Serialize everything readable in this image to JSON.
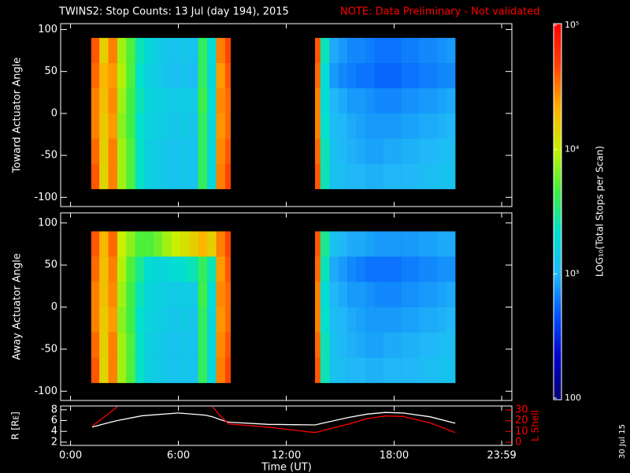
{
  "title": "TWINS2: Stop Counts: 13 Jul (day 194), 2015",
  "note": "NOTE: Data Preliminary - Not validated",
  "x_label": "Time (UT)",
  "date_stamp": "30 Jul 15",
  "colorbar": {
    "label": "LOG₁₀(Total Stops per Scan)",
    "log": true,
    "clim": [
      100,
      100000
    ],
    "ticks": [
      {
        "value": 100000,
        "label": "10⁵"
      },
      {
        "value": 10000,
        "label": "10⁴"
      },
      {
        "value": 1000,
        "label": "10³"
      },
      100
    ],
    "colormap": [
      "#000070",
      "#0000c8",
      "#0050ff",
      "#20b8f8",
      "#00e0d0",
      "#40f040",
      "#c8f000",
      "#ffb000",
      "#ff4000",
      "#ff0000"
    ]
  },
  "chart_data": [
    {
      "type": "heatmap",
      "ylabel": "Toward Actuator Angle",
      "x_edges": [
        1.15,
        1.6,
        2.1,
        2.6,
        3.1,
        3.6,
        4.1,
        4.6,
        5.1,
        5.6,
        6.1,
        6.6,
        7.1,
        7.6,
        8.1,
        8.6,
        8.9,
        13.6,
        13.9,
        14.4,
        14.9,
        15.4,
        15.9,
        16.4,
        16.9,
        17.4,
        17.9,
        18.4,
        18.9,
        19.4,
        19.9,
        20.4,
        20.9,
        21.4
      ],
      "y_edges": [
        90,
        60,
        30,
        0,
        -30,
        -60,
        -90
      ],
      "z": [
        [
          40000,
          15000,
          30000,
          8000,
          5000,
          2500,
          1800,
          1500,
          1300,
          1200,
          1300,
          1200,
          4000,
          2000,
          30000,
          45000,
          null,
          40000,
          2500,
          900,
          800,
          700,
          700,
          650,
          600,
          600,
          600,
          650,
          650,
          700,
          700,
          750,
          800
        ],
        [
          35000,
          20000,
          25000,
          9000,
          5000,
          2200,
          1600,
          1400,
          1200,
          1100,
          1200,
          1100,
          4000,
          1800,
          25000,
          40000,
          null,
          35000,
          2000,
          800,
          700,
          650,
          600,
          600,
          550,
          550,
          550,
          600,
          600,
          650,
          650,
          700,
          700
        ],
        [
          30000,
          18000,
          28000,
          8000,
          4500,
          2500,
          1800,
          1600,
          1500,
          1400,
          1500,
          1400,
          4500,
          2000,
          28000,
          35000,
          null,
          30000,
          2000,
          1000,
          900,
          800,
          800,
          750,
          700,
          700,
          700,
          750,
          750,
          800,
          800,
          850,
          900
        ],
        [
          30000,
          16000,
          25000,
          7000,
          4500,
          2200,
          1700,
          1500,
          1400,
          1300,
          1400,
          1300,
          4000,
          1800,
          26000,
          35000,
          null,
          30000,
          2200,
          1100,
          1000,
          900,
          850,
          800,
          800,
          800,
          800,
          850,
          850,
          900,
          900,
          950,
          1000
        ],
        [
          35000,
          15000,
          30000,
          8000,
          5000,
          2300,
          1600,
          1400,
          1300,
          1200,
          1300,
          1200,
          4000,
          1800,
          28000,
          40000,
          null,
          35000,
          2500,
          1200,
          1000,
          950,
          900,
          850,
          850,
          900,
          900,
          950,
          950,
          1000,
          1000,
          1100,
          1100
        ],
        [
          40000,
          14000,
          30000,
          8000,
          5000,
          2300,
          1600,
          1400,
          1300,
          1200,
          1300,
          1200,
          4000,
          1800,
          30000,
          45000,
          null,
          40000,
          2500,
          1200,
          1100,
          1000,
          1000,
          950,
          950,
          1000,
          1000,
          1000,
          1000,
          1100,
          1100,
          1200,
          1200
        ]
      ],
      "ylim": [
        -111,
        107
      ],
      "yticks": [
        -100,
        -50,
        0,
        50,
        100
      ]
    },
    {
      "type": "heatmap",
      "ylabel": "Away Actuator Angle",
      "x_edges": [
        1.15,
        1.6,
        2.1,
        2.6,
        3.1,
        3.6,
        4.1,
        4.6,
        5.1,
        5.6,
        6.1,
        6.6,
        7.1,
        7.6,
        8.1,
        8.6,
        8.9,
        13.6,
        13.9,
        14.4,
        14.9,
        15.4,
        15.9,
        16.4,
        16.9,
        17.4,
        17.9,
        18.4,
        18.9,
        19.4,
        19.9,
        20.4,
        20.9,
        21.4
      ],
      "y_edges": [
        90,
        60,
        30,
        0,
        -30,
        -60,
        -90
      ],
      "z": [
        [
          40000,
          20000,
          35000,
          10000,
          7000,
          5000,
          5000,
          6000,
          8000,
          10000,
          12000,
          15000,
          20000,
          15000,
          30000,
          45000,
          null,
          40000,
          3000,
          1200,
          1000,
          900,
          900,
          850,
          800,
          800,
          800,
          800,
          800,
          850,
          850,
          900,
          900
        ],
        [
          35000,
          18000,
          30000,
          9000,
          5000,
          3000,
          2000,
          1800,
          1800,
          2000,
          2200,
          2500,
          4000,
          2500,
          25000,
          40000,
          null,
          35000,
          2500,
          900,
          800,
          700,
          650,
          600,
          600,
          600,
          600,
          650,
          650,
          700,
          700,
          750,
          750
        ],
        [
          30000,
          18000,
          28000,
          8000,
          4500,
          2500,
          1800,
          1600,
          1500,
          1400,
          1500,
          1400,
          4500,
          2000,
          28000,
          35000,
          null,
          30000,
          2000,
          1000,
          900,
          800,
          800,
          750,
          700,
          700,
          700,
          750,
          750,
          800,
          800,
          850,
          900
        ],
        [
          30000,
          16000,
          25000,
          7000,
          4500,
          2200,
          1700,
          1500,
          1400,
          1300,
          1400,
          1300,
          4000,
          1800,
          26000,
          35000,
          null,
          30000,
          2200,
          1100,
          1000,
          900,
          850,
          800,
          800,
          800,
          800,
          850,
          850,
          900,
          900,
          950,
          1000
        ],
        [
          35000,
          15000,
          30000,
          8000,
          5000,
          2300,
          1600,
          1400,
          1300,
          1200,
          1300,
          1200,
          4000,
          1800,
          28000,
          40000,
          null,
          35000,
          2500,
          1200,
          1000,
          950,
          900,
          850,
          850,
          900,
          900,
          950,
          950,
          1000,
          1000,
          1100,
          1100
        ],
        [
          40000,
          14000,
          30000,
          8000,
          5000,
          2300,
          1600,
          1400,
          1300,
          1200,
          1300,
          1200,
          4000,
          1800,
          30000,
          45000,
          null,
          40000,
          2500,
          1200,
          1100,
          1000,
          1000,
          950,
          950,
          1000,
          1000,
          1000,
          1000,
          1100,
          1100,
          1200,
          1200
        ]
      ],
      "ylim": [
        -111,
        112
      ],
      "yticks": [
        -100,
        -50,
        0,
        50,
        100
      ]
    },
    {
      "type": "line",
      "ylabel": "R [Rᴇ]",
      "y2label": "L Shell",
      "x": [
        1.2,
        2.0,
        2.6,
        4,
        6,
        7.5,
        7.9,
        8.3,
        8.8,
        11,
        13.6,
        15.5,
        16.5,
        17.5,
        18.5,
        20,
        21.4
      ],
      "series": [
        {
          "color": "#ffffff",
          "values": [
            4.8,
            5.5,
            6.0,
            6.9,
            7.4,
            7.0,
            6.7,
            6.2,
            5.7,
            5.3,
            5.2,
            6.6,
            7.2,
            7.5,
            7.4,
            6.7,
            5.5
          ]
        },
        {
          "color": "#ff0000",
          "axis": "y2",
          "values": [
            15,
            25,
            33,
            null,
            null,
            null,
            33,
            25,
            17,
            14,
            9,
            17,
            22,
            24.5,
            24,
            18,
            9
          ]
        }
      ],
      "xlim": [
        -0.55,
        24.55
      ],
      "xticks": [
        {
          "value": 0,
          "label": "0:00"
        },
        {
          "value": 6,
          "label": "6:00"
        },
        {
          "value": 12,
          "label": "12:00"
        },
        {
          "value": 18,
          "label": "18:00"
        },
        {
          "value": 23.983,
          "label": "23:59"
        }
      ],
      "ylim": [
        1.4,
        8.7
      ],
      "yticks": [
        2,
        4,
        6,
        8
      ],
      "y2lim": [
        -2.9,
        33.7
      ],
      "y2ticks": [
        0,
        10,
        20,
        30
      ],
      "y2color": "#ff0000"
    }
  ]
}
